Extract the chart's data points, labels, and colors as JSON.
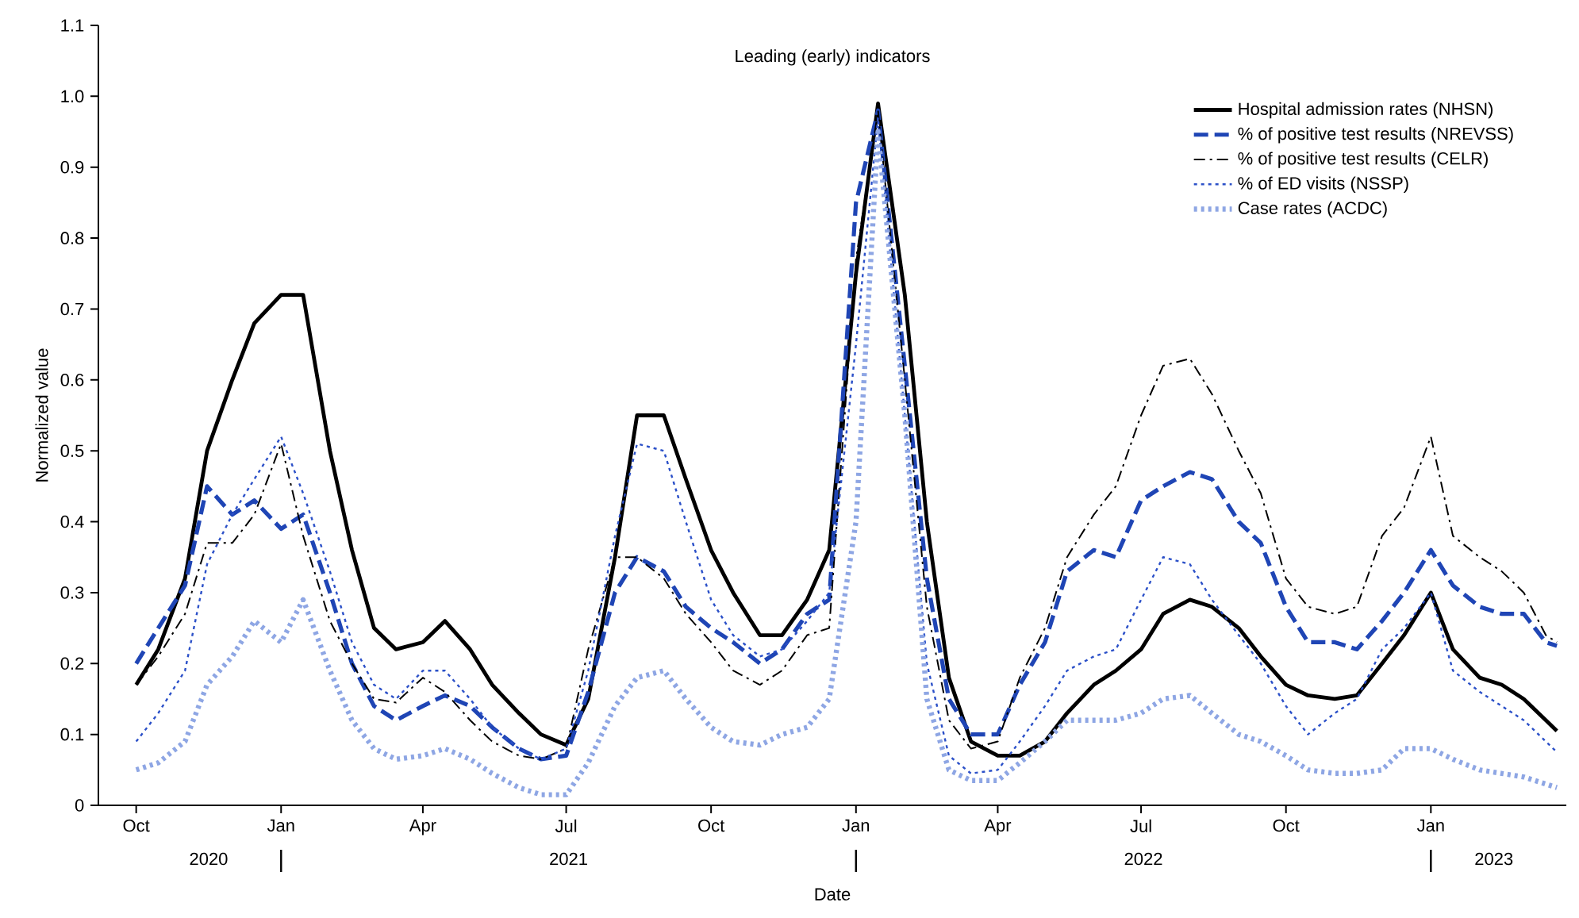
{
  "chart_data": {
    "type": "line",
    "title": "Leading (early) indicators",
    "xlabel": "Date",
    "ylabel": "Normalized value",
    "x": [
      "2020-10-01",
      "2020-10-15",
      "2020-11-01",
      "2020-11-15",
      "2020-12-01",
      "2020-12-15",
      "2021-01-01",
      "2021-01-15",
      "2021-02-01",
      "2021-02-15",
      "2021-03-01",
      "2021-03-15",
      "2021-04-01",
      "2021-04-15",
      "2021-05-01",
      "2021-05-15",
      "2021-06-01",
      "2021-06-15",
      "2021-07-01",
      "2021-07-15",
      "2021-08-01",
      "2021-08-15",
      "2021-09-01",
      "2021-09-15",
      "2021-10-01",
      "2021-10-15",
      "2021-11-01",
      "2021-11-15",
      "2021-12-01",
      "2021-12-15",
      "2022-01-01",
      "2022-01-15",
      "2022-02-01",
      "2022-02-15",
      "2022-03-01",
      "2022-03-15",
      "2022-04-01",
      "2022-04-15",
      "2022-05-01",
      "2022-05-15",
      "2022-06-01",
      "2022-06-15",
      "2022-07-01",
      "2022-07-15",
      "2022-08-01",
      "2022-08-15",
      "2022-09-01",
      "2022-09-15",
      "2022-10-01",
      "2022-10-15",
      "2022-11-01",
      "2022-11-15",
      "2022-12-01",
      "2022-12-15",
      "2023-01-01",
      "2023-01-15",
      "2023-02-01",
      "2023-02-15",
      "2023-03-01",
      "2023-03-15",
      "2023-03-22"
    ],
    "series": [
      {
        "name": "Hospital admission rates (NHSN)",
        "color": "#000000",
        "line_style": "solid",
        "values": [
          0.17,
          0.22,
          0.32,
          0.5,
          0.6,
          0.68,
          0.72,
          0.72,
          0.5,
          0.36,
          0.25,
          0.22,
          0.23,
          0.26,
          0.22,
          0.17,
          0.13,
          0.1,
          0.085,
          0.15,
          0.35,
          0.55,
          0.55,
          0.46,
          0.36,
          0.3,
          0.24,
          0.24,
          0.29,
          0.36,
          0.75,
          0.99,
          0.72,
          0.4,
          0.18,
          0.09,
          0.07,
          0.07,
          0.09,
          0.13,
          0.17,
          0.19,
          0.22,
          0.27,
          0.29,
          0.28,
          0.25,
          0.21,
          0.17,
          0.155,
          0.15,
          0.155,
          0.2,
          0.24,
          0.3,
          0.22,
          0.18,
          0.17,
          0.15,
          0.12,
          0.105
        ]
      },
      {
        "name": "% of positive test results (NREVSS)",
        "color": "#1f45b5",
        "line_style": "dashed",
        "values": [
          0.2,
          0.25,
          0.31,
          0.45,
          0.41,
          0.43,
          0.39,
          0.41,
          0.3,
          0.2,
          0.14,
          0.12,
          0.14,
          0.155,
          0.14,
          0.11,
          0.08,
          0.065,
          0.07,
          0.16,
          0.3,
          0.35,
          0.33,
          0.28,
          0.25,
          0.23,
          0.2,
          0.22,
          0.27,
          0.29,
          0.85,
          0.98,
          0.62,
          0.32,
          0.15,
          0.1,
          0.1,
          0.17,
          0.23,
          0.33,
          0.36,
          0.35,
          0.43,
          0.45,
          0.47,
          0.46,
          0.4,
          0.37,
          0.28,
          0.23,
          0.23,
          0.22,
          0.26,
          0.3,
          0.36,
          0.31,
          0.28,
          0.27,
          0.27,
          0.23,
          0.225
        ]
      },
      {
        "name": "% of positive test results (CELR)",
        "color": "#000000",
        "line_style": "dashdot",
        "values": [
          0.17,
          0.21,
          0.27,
          0.37,
          0.37,
          0.41,
          0.51,
          0.38,
          0.26,
          0.2,
          0.15,
          0.145,
          0.18,
          0.16,
          0.12,
          0.09,
          0.07,
          0.065,
          0.08,
          0.22,
          0.35,
          0.35,
          0.32,
          0.27,
          0.23,
          0.19,
          0.17,
          0.19,
          0.24,
          0.25,
          0.77,
          0.98,
          0.6,
          0.28,
          0.12,
          0.08,
          0.09,
          0.18,
          0.25,
          0.35,
          0.41,
          0.45,
          0.55,
          0.62,
          0.63,
          0.58,
          0.5,
          0.44,
          0.32,
          0.28,
          0.27,
          0.28,
          0.38,
          0.42,
          0.52,
          0.38,
          0.35,
          0.33,
          0.3,
          0.24,
          0.23
        ]
      },
      {
        "name": "% of ED visits (NSSP)",
        "color": "#2b50c8",
        "line_style": "dotted",
        "values": [
          0.09,
          0.13,
          0.19,
          0.34,
          0.41,
          0.46,
          0.52,
          0.44,
          0.33,
          0.23,
          0.17,
          0.15,
          0.19,
          0.19,
          0.15,
          0.11,
          0.08,
          0.065,
          0.08,
          0.19,
          0.38,
          0.51,
          0.5,
          0.4,
          0.29,
          0.24,
          0.21,
          0.22,
          0.26,
          0.3,
          0.65,
          0.97,
          0.55,
          0.2,
          0.07,
          0.045,
          0.05,
          0.09,
          0.14,
          0.19,
          0.21,
          0.22,
          0.29,
          0.35,
          0.34,
          0.29,
          0.24,
          0.2,
          0.14,
          0.1,
          0.13,
          0.15,
          0.22,
          0.25,
          0.3,
          0.19,
          0.16,
          0.14,
          0.12,
          0.09,
          0.075
        ]
      },
      {
        "name": "Case rates (ACDC)",
        "color": "#8ea6e4",
        "line_style": "dotted",
        "values": [
          0.05,
          0.06,
          0.09,
          0.17,
          0.21,
          0.26,
          0.23,
          0.29,
          0.19,
          0.12,
          0.08,
          0.065,
          0.07,
          0.08,
          0.065,
          0.045,
          0.025,
          0.015,
          0.015,
          0.06,
          0.14,
          0.18,
          0.19,
          0.15,
          0.11,
          0.09,
          0.085,
          0.1,
          0.11,
          0.15,
          0.4,
          0.95,
          0.55,
          0.15,
          0.05,
          0.035,
          0.035,
          0.06,
          0.09,
          0.12,
          0.12,
          0.12,
          0.13,
          0.15,
          0.155,
          0.13,
          0.1,
          0.09,
          0.07,
          0.05,
          0.045,
          0.045,
          0.05,
          0.08,
          0.08,
          0.065,
          0.05,
          0.045,
          0.04,
          0.03,
          0.025
        ]
      }
    ],
    "xlim": [
      "2020-09-07",
      "2023-03-28"
    ],
    "xticks": [
      {
        "value": "2020-10-01",
        "label": "Oct"
      },
      {
        "value": "2021-01-01",
        "label": "Jan"
      },
      {
        "value": "2021-04-01",
        "label": "Apr"
      },
      {
        "value": "2021-07-01",
        "label": "Jul"
      },
      {
        "value": "2021-10-01",
        "label": "Oct"
      },
      {
        "value": "2022-01-01",
        "label": "Jan"
      },
      {
        "value": "2022-04-01",
        "label": "Apr"
      },
      {
        "value": "2022-07-01",
        "label": "Jul"
      },
      {
        "value": "2022-10-01",
        "label": "Oct"
      },
      {
        "value": "2023-01-01",
        "label": "Jan"
      }
    ],
    "ylim": [
      0,
      1.1
    ],
    "yticks": [
      0,
      0.1,
      0.2,
      0.3,
      0.4,
      0.5,
      0.6,
      0.7,
      0.8,
      0.9,
      {
        "value": 1.0,
        "label": "1.0"
      },
      1.1
    ],
    "annotations": [
      "2020",
      "2021",
      "2022",
      "2023"
    ],
    "legend": "top right"
  }
}
